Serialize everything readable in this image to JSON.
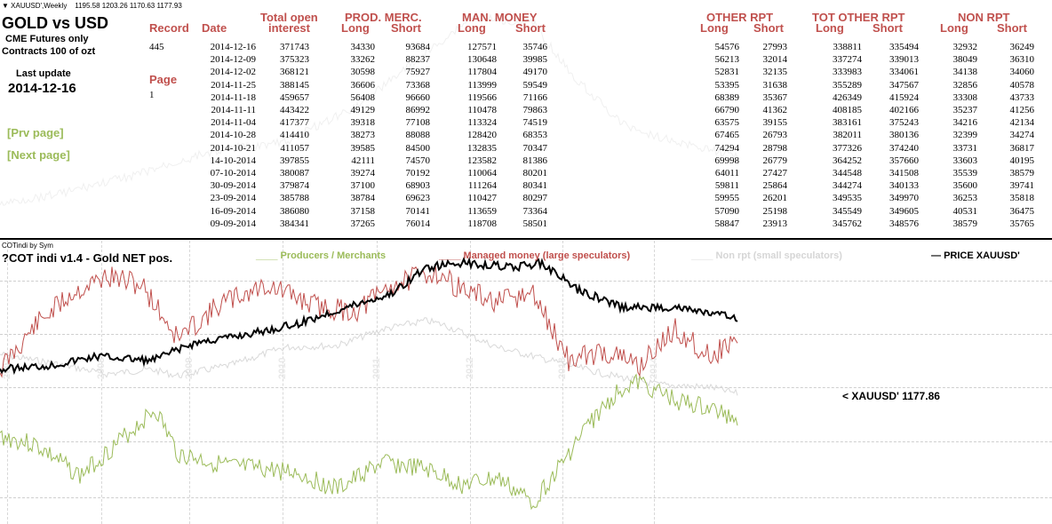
{
  "top_chart": {
    "symbol": "XAUUSD',Weekly",
    "ohlc": "1195.58 1203.26 1170.63 1177.93"
  },
  "info": {
    "title": "GOLD vs USD",
    "subtitle1": "CME Futures only",
    "subtitle2": "Contracts  100 of ozt",
    "last_update_label": "Last update",
    "last_update_value": "2014-12-16",
    "record_label": "Record",
    "record_value": "445",
    "page_label": "Page",
    "page_value": "1",
    "prev_page": "[Prv page]",
    "next_page": "[Next page]"
  },
  "table": {
    "date_header": "Date",
    "total_oi_header1": "Total open",
    "total_oi_header2": "interest",
    "group_headers": [
      "PROD. MERC.",
      "MAN. MONEY",
      "OTHER RPT",
      "TOT OTHER RPT",
      "NON RPT"
    ],
    "long_label": "Long",
    "short_label": "Short",
    "rows": [
      [
        "2014-12-16",
        "371743",
        "34330",
        "93684",
        "127571",
        "35746",
        "54576",
        "27993",
        "338811",
        "335494",
        "32932",
        "36249"
      ],
      [
        "2014-12-09",
        "375323",
        "33262",
        "88237",
        "130648",
        "39985",
        "56213",
        "32014",
        "337274",
        "339013",
        "38049",
        "36310"
      ],
      [
        "2014-12-02",
        "368121",
        "30598",
        "75927",
        "117804",
        "49170",
        "52831",
        "32135",
        "333983",
        "334061",
        "34138",
        "34060"
      ],
      [
        "2014-11-25",
        "388145",
        "36606",
        "73368",
        "113999",
        "59549",
        "53395",
        "31638",
        "355289",
        "347567",
        "32856",
        "40578"
      ],
      [
        "2014-11-18",
        "459657",
        "56408",
        "96660",
        "119566",
        "71166",
        "68389",
        "35367",
        "426349",
        "415924",
        "33308",
        "43733"
      ],
      [
        "2014-11-11",
        "443422",
        "49129",
        "86992",
        "110478",
        "79863",
        "66790",
        "41362",
        "408185",
        "402166",
        "35237",
        "41256"
      ],
      [
        "2014-11-04",
        "417377",
        "39318",
        "77108",
        "113324",
        "74519",
        "63575",
        "39155",
        "383161",
        "375243",
        "34216",
        "42134"
      ],
      [
        "2014-10-28",
        "414410",
        "38273",
        "88088",
        "128420",
        "68353",
        "67465",
        "26793",
        "382011",
        "380136",
        "32399",
        "34274"
      ],
      [
        "2014-10-21",
        "411057",
        "39585",
        "84500",
        "132835",
        "70347",
        "74294",
        "28798",
        "377326",
        "374240",
        "33731",
        "36817"
      ],
      [
        "14-10-2014",
        "397855",
        "42111",
        "74570",
        "123582",
        "81386",
        "69998",
        "26779",
        "364252",
        "357660",
        "33603",
        "40195"
      ],
      [
        "07-10-2014",
        "380087",
        "39274",
        "70192",
        "110064",
        "80201",
        "64011",
        "27427",
        "344548",
        "341508",
        "35539",
        "38579"
      ],
      [
        "30-09-2014",
        "379874",
        "37100",
        "68903",
        "111264",
        "80341",
        "59811",
        "25864",
        "344274",
        "340133",
        "35600",
        "39741"
      ],
      [
        "23-09-2014",
        "385788",
        "38784",
        "69623",
        "110427",
        "80297",
        "59955",
        "26201",
        "349535",
        "349970",
        "36253",
        "35818"
      ],
      [
        "16-09-2014",
        "386080",
        "37158",
        "70141",
        "113659",
        "73364",
        "57090",
        "25198",
        "345549",
        "349605",
        "40531",
        "36475"
      ],
      [
        "09-09-2014",
        "384341",
        "37265",
        "76014",
        "118708",
        "58501",
        "58847",
        "23913",
        "345762",
        "348576",
        "38579",
        "35765"
      ]
    ]
  },
  "indicator": {
    "window_label": "COTindi by Sym",
    "title": "?COT indi v1.4 - Gold NET pos.",
    "legend_prod": "Producers / Merchants",
    "legend_man": "Managed money (large speculators)",
    "legend_non": "Non rpt (small speculators)",
    "legend_price": "PRICE XAUUSD'",
    "price_label": "< XAUUSD'  1177.86",
    "year_labels": [
      "2007",
      "2008",
      "2009",
      "2010",
      "2011",
      "2012",
      "2013",
      "2014"
    ],
    "colors": {
      "producers": "#9bbb59",
      "managed": "#c0504d",
      "nonrpt": "#d9d9d9",
      "price": "#000000"
    }
  }
}
